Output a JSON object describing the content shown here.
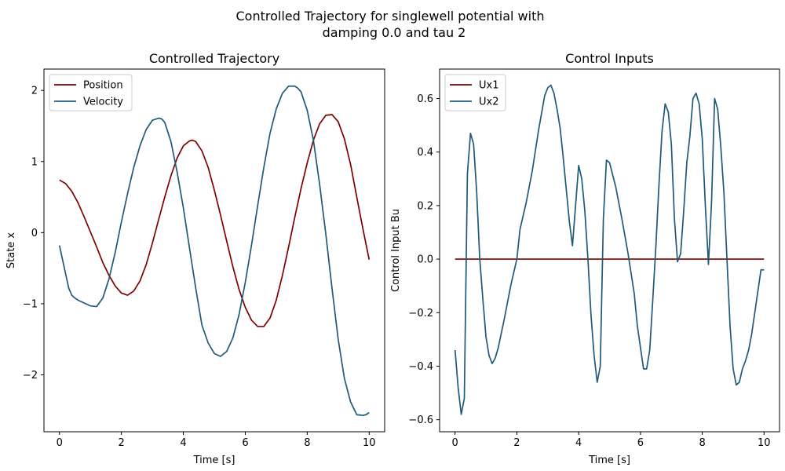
{
  "figure": {
    "suptitle_lines": [
      "Controlled Trajectory for singlewell potential with",
      "damping 0.0 and tau 2"
    ]
  },
  "chart_data": [
    {
      "type": "line",
      "title": "Controlled Trajectory",
      "xlabel": "Time [s]",
      "ylabel": "State x",
      "xlim": [
        -0.5,
        10.5
      ],
      "ylim": [
        -2.8,
        2.3
      ],
      "xticks": [
        0,
        2,
        4,
        6,
        8,
        10
      ],
      "xtick_labels": [
        "0",
        "2",
        "4",
        "6",
        "8",
        "10"
      ],
      "yticks": [
        -2,
        -1,
        0,
        1,
        2
      ],
      "ytick_labels": [
        "−2",
        "−1",
        "0",
        "1",
        "2"
      ],
      "grid": false,
      "legend": "upper left",
      "series": [
        {
          "name": "Position",
          "color": "#800000",
          "x": [
            0,
            0.2,
            0.4,
            0.6,
            0.8,
            1.0,
            1.2,
            1.4,
            1.6,
            1.8,
            2.0,
            2.2,
            2.4,
            2.6,
            2.8,
            3.0,
            3.2,
            3.4,
            3.6,
            3.8,
            4.0,
            4.2,
            4.3,
            4.4,
            4.6,
            4.8,
            5.0,
            5.2,
            5.4,
            5.6,
            5.8,
            6.0,
            6.2,
            6.4,
            6.6,
            6.8,
            7.0,
            7.2,
            7.4,
            7.6,
            7.8,
            8.0,
            8.2,
            8.4,
            8.6,
            8.8,
            9.0,
            9.2,
            9.4,
            9.6,
            9.8,
            10.0
          ],
          "values": [
            0.74,
            0.69,
            0.58,
            0.42,
            0.22,
            0.01,
            -0.2,
            -0.42,
            -0.6,
            -0.75,
            -0.85,
            -0.88,
            -0.82,
            -0.68,
            -0.45,
            -0.15,
            0.18,
            0.5,
            0.8,
            1.05,
            1.22,
            1.29,
            1.3,
            1.28,
            1.15,
            0.92,
            0.6,
            0.25,
            -0.12,
            -0.48,
            -0.8,
            -1.05,
            -1.23,
            -1.32,
            -1.32,
            -1.2,
            -0.95,
            -0.6,
            -0.2,
            0.22,
            0.62,
            0.98,
            1.3,
            1.53,
            1.65,
            1.66,
            1.56,
            1.32,
            0.96,
            0.5,
            0.05,
            -0.38
          ]
        },
        {
          "name": "Velocity",
          "color": "#1f5a7a",
          "x": [
            0,
            0.1,
            0.2,
            0.3,
            0.4,
            0.5,
            0.6,
            0.8,
            1.0,
            1.2,
            1.4,
            1.6,
            1.8,
            2.0,
            2.2,
            2.4,
            2.6,
            2.8,
            3.0,
            3.2,
            3.3,
            3.4,
            3.6,
            3.8,
            4.0,
            4.2,
            4.4,
            4.6,
            4.8,
            5.0,
            5.2,
            5.4,
            5.6,
            5.8,
            6.0,
            6.2,
            6.4,
            6.6,
            6.8,
            7.0,
            7.2,
            7.4,
            7.6,
            7.7,
            7.8,
            8.0,
            8.2,
            8.4,
            8.6,
            8.8,
            9.0,
            9.2,
            9.4,
            9.6,
            9.8,
            9.9,
            10.0
          ],
          "values": [
            -0.18,
            -0.38,
            -0.58,
            -0.78,
            -0.88,
            -0.92,
            -0.95,
            -0.99,
            -1.03,
            -1.04,
            -0.92,
            -0.65,
            -0.28,
            0.15,
            0.55,
            0.92,
            1.22,
            1.45,
            1.58,
            1.61,
            1.6,
            1.55,
            1.28,
            0.85,
            0.35,
            -0.22,
            -0.78,
            -1.3,
            -1.55,
            -1.7,
            -1.74,
            -1.67,
            -1.48,
            -1.15,
            -0.7,
            -0.18,
            0.38,
            0.92,
            1.4,
            1.74,
            1.96,
            2.06,
            2.06,
            2.03,
            1.98,
            1.72,
            1.3,
            0.68,
            -0.02,
            -0.78,
            -1.5,
            -2.05,
            -2.38,
            -2.56,
            -2.57,
            -2.56,
            -2.53
          ]
        }
      ]
    },
    {
      "type": "line",
      "title": "Control Inputs",
      "xlabel": "Time [s]",
      "ylabel": "Control Input Bu",
      "xlim": [
        -0.5,
        10.5
      ],
      "ylim": [
        -0.645,
        0.71
      ],
      "xticks": [
        0,
        2,
        4,
        6,
        8,
        10
      ],
      "xtick_labels": [
        "0",
        "2",
        "4",
        "6",
        "8",
        "10"
      ],
      "yticks": [
        -0.6,
        -0.4,
        -0.2,
        0.0,
        0.2,
        0.4,
        0.6
      ],
      "ytick_labels": [
        "−0.6",
        "−0.4",
        "−0.2",
        "0.0",
        "0.2",
        "0.4",
        "0.6"
      ],
      "grid": false,
      "legend": "upper left",
      "series": [
        {
          "name": "Ux1",
          "color": "#800000",
          "x": [
            0,
            10
          ],
          "values": [
            0.0,
            0.0
          ]
        },
        {
          "name": "Ux2",
          "color": "#1f5a7a",
          "x": [
            0,
            0.1,
            0.2,
            0.3,
            0.4,
            0.5,
            0.6,
            0.7,
            0.8,
            0.9,
            1.0,
            1.1,
            1.2,
            1.3,
            1.4,
            1.6,
            1.8,
            2.0,
            2.1,
            2.3,
            2.5,
            2.7,
            2.9,
            3.0,
            3.1,
            3.2,
            3.3,
            3.4,
            3.5,
            3.6,
            3.7,
            3.8,
            3.9,
            4.0,
            4.1,
            4.2,
            4.3,
            4.4,
            4.5,
            4.6,
            4.7,
            4.8,
            4.9,
            5.0,
            5.2,
            5.4,
            5.6,
            5.8,
            5.9,
            6.0,
            6.1,
            6.2,
            6.3,
            6.4,
            6.5,
            6.6,
            6.7,
            6.8,
            6.9,
            7.0,
            7.1,
            7.2,
            7.3,
            7.4,
            7.5,
            7.6,
            7.7,
            7.8,
            7.9,
            8.0,
            8.1,
            8.2,
            8.3,
            8.4,
            8.5,
            8.6,
            8.7,
            8.8,
            8.9,
            9.0,
            9.1,
            9.2,
            9.3,
            9.4,
            9.5,
            9.6,
            9.7,
            9.8,
            9.9,
            10.0
          ],
          "values": [
            -0.34,
            -0.48,
            -0.58,
            -0.52,
            0.32,
            0.47,
            0.43,
            0.25,
            0.0,
            -0.15,
            -0.29,
            -0.36,
            -0.39,
            -0.37,
            -0.33,
            -0.22,
            -0.1,
            0.0,
            0.11,
            0.21,
            0.33,
            0.48,
            0.61,
            0.64,
            0.65,
            0.62,
            0.56,
            0.49,
            0.38,
            0.26,
            0.14,
            0.05,
            0.2,
            0.35,
            0.3,
            0.18,
            0.0,
            -0.21,
            -0.36,
            -0.46,
            -0.4,
            0.15,
            0.37,
            0.36,
            0.27,
            0.15,
            0.02,
            -0.13,
            -0.25,
            -0.33,
            -0.41,
            -0.41,
            -0.34,
            -0.15,
            0.05,
            0.28,
            0.48,
            0.58,
            0.55,
            0.43,
            0.15,
            -0.01,
            0.02,
            0.18,
            0.36,
            0.46,
            0.6,
            0.62,
            0.58,
            0.45,
            0.2,
            -0.02,
            0.21,
            0.6,
            0.56,
            0.42,
            0.25,
            0.0,
            -0.25,
            -0.41,
            -0.47,
            -0.46,
            -0.41,
            -0.38,
            -0.34,
            -0.28,
            -0.2,
            -0.12,
            -0.04,
            -0.04
          ]
        }
      ]
    }
  ]
}
